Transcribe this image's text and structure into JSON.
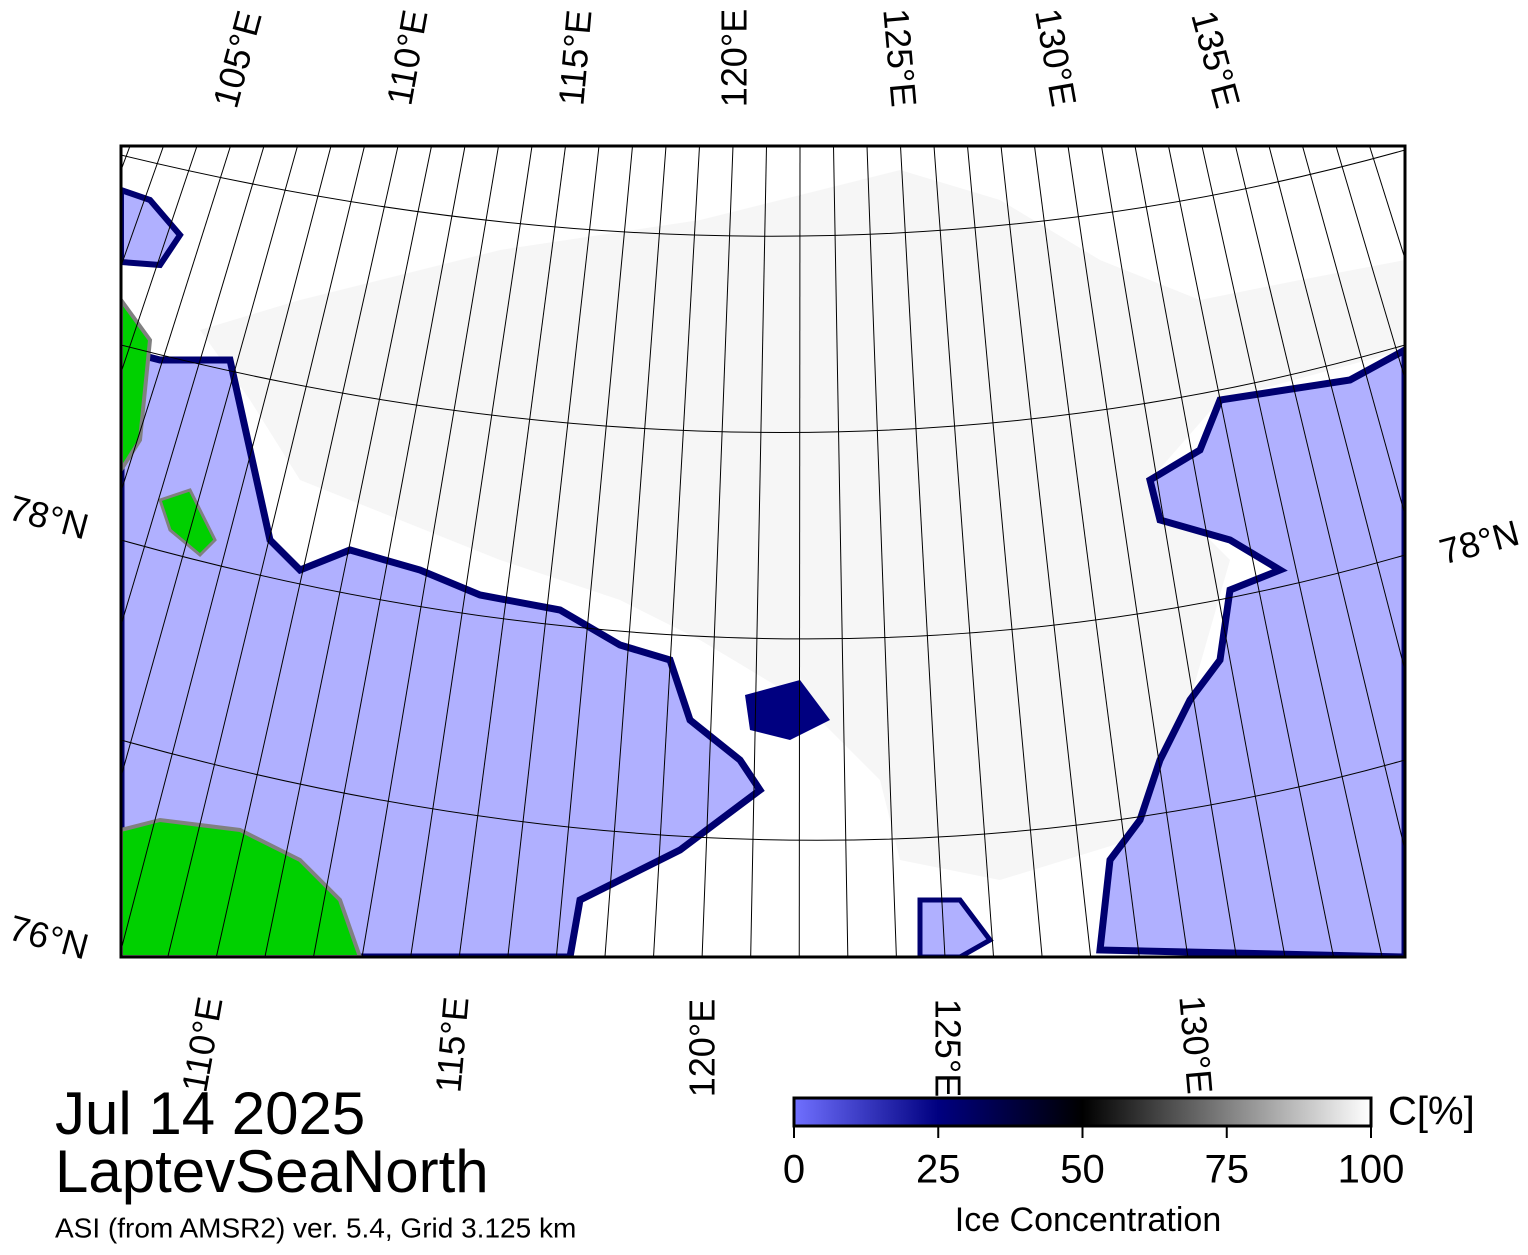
{
  "map": {
    "top_labels": [
      "105°E",
      "110°E",
      "115°E",
      "120°E",
      "125°E",
      "130°E",
      "135°E"
    ],
    "bottom_labels": [
      "110°E",
      "115°E",
      "120°E",
      "125°E",
      "130°E"
    ],
    "left_labels": [
      "78°N",
      "76°N"
    ],
    "right_labels": [
      "78°N"
    ]
  },
  "caption": {
    "date": "Jul 14 2025",
    "region": "LaptevSeaNorth",
    "source": "ASI (from AMSR2) ver. 5.4,  Grid 3.125 km"
  },
  "colorbar": {
    "lim": [
      0,
      100
    ],
    "ticks": [
      0,
      25,
      50,
      75,
      100
    ],
    "unit": "C[%]",
    "label": "Ice Concentration",
    "colors": [
      "#7070ff",
      "#000080",
      "#000000",
      "#808080",
      "#ffffff"
    ]
  }
}
